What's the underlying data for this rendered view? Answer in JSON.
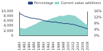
{
  "chart_data": {
    "type": "line",
    "categories": [
      "1980",
      null,
      "1982",
      null,
      "1984",
      null,
      "1986",
      null,
      "1988",
      null,
      "1990",
      null,
      "1992",
      null,
      "1994",
      null,
      "1996",
      null,
      "1998",
      null,
      "2000",
      null,
      "2002",
      null,
      "2004",
      null,
      "2006",
      null,
      "2008"
    ],
    "series": [
      {
        "name": "Current value additions",
        "type": "area",
        "color": "#8fd3cd",
        "values": [
          3200,
          3000,
          2800,
          3100,
          3600,
          4000,
          4500,
          5000,
          5600,
          6000,
          6200,
          6300,
          6600,
          7000,
          7400,
          7600,
          8000,
          8200,
          8000,
          8400,
          8600,
          8500,
          8300,
          8000,
          7200,
          6500,
          5600,
          4800,
          4200
        ]
      },
      {
        "name": "Percentage",
        "type": "line",
        "color": "#1f3d7a",
        "axis": "y2",
        "values": [
          14.5,
          14,
          13,
          12.5,
          12,
          11.5,
          11.5,
          11,
          11,
          10.5,
          10,
          9.5,
          9.5,
          9,
          9,
          9,
          8.5,
          8.5,
          8,
          8,
          8,
          7.5,
          7.5,
          7,
          6.5,
          6,
          5.5,
          5,
          4.5
        ]
      }
    ],
    "ylim": [
      0,
      10000
    ],
    "yticks": [
      0,
      {
        "value": 2000,
        "label": "2,000"
      },
      {
        "value": 4000,
        "label": "4,000"
      },
      {
        "value": 6000,
        "label": "6,000"
      },
      {
        "value": 8000,
        "label": "8,000"
      },
      {
        "value": 10000,
        "label": "10,000"
      }
    ],
    "y2lim": [
      0,
      16
    ],
    "y2ticks": [
      {
        "value": 0,
        "label": "0%"
      },
      {
        "value": 4,
        "label": "4%"
      },
      {
        "value": 8,
        "label": "8%"
      },
      {
        "value": 12,
        "label": "12%"
      },
      {
        "value": 16,
        "label": "16%"
      }
    ],
    "legend": "upper right",
    "grid": false
  }
}
